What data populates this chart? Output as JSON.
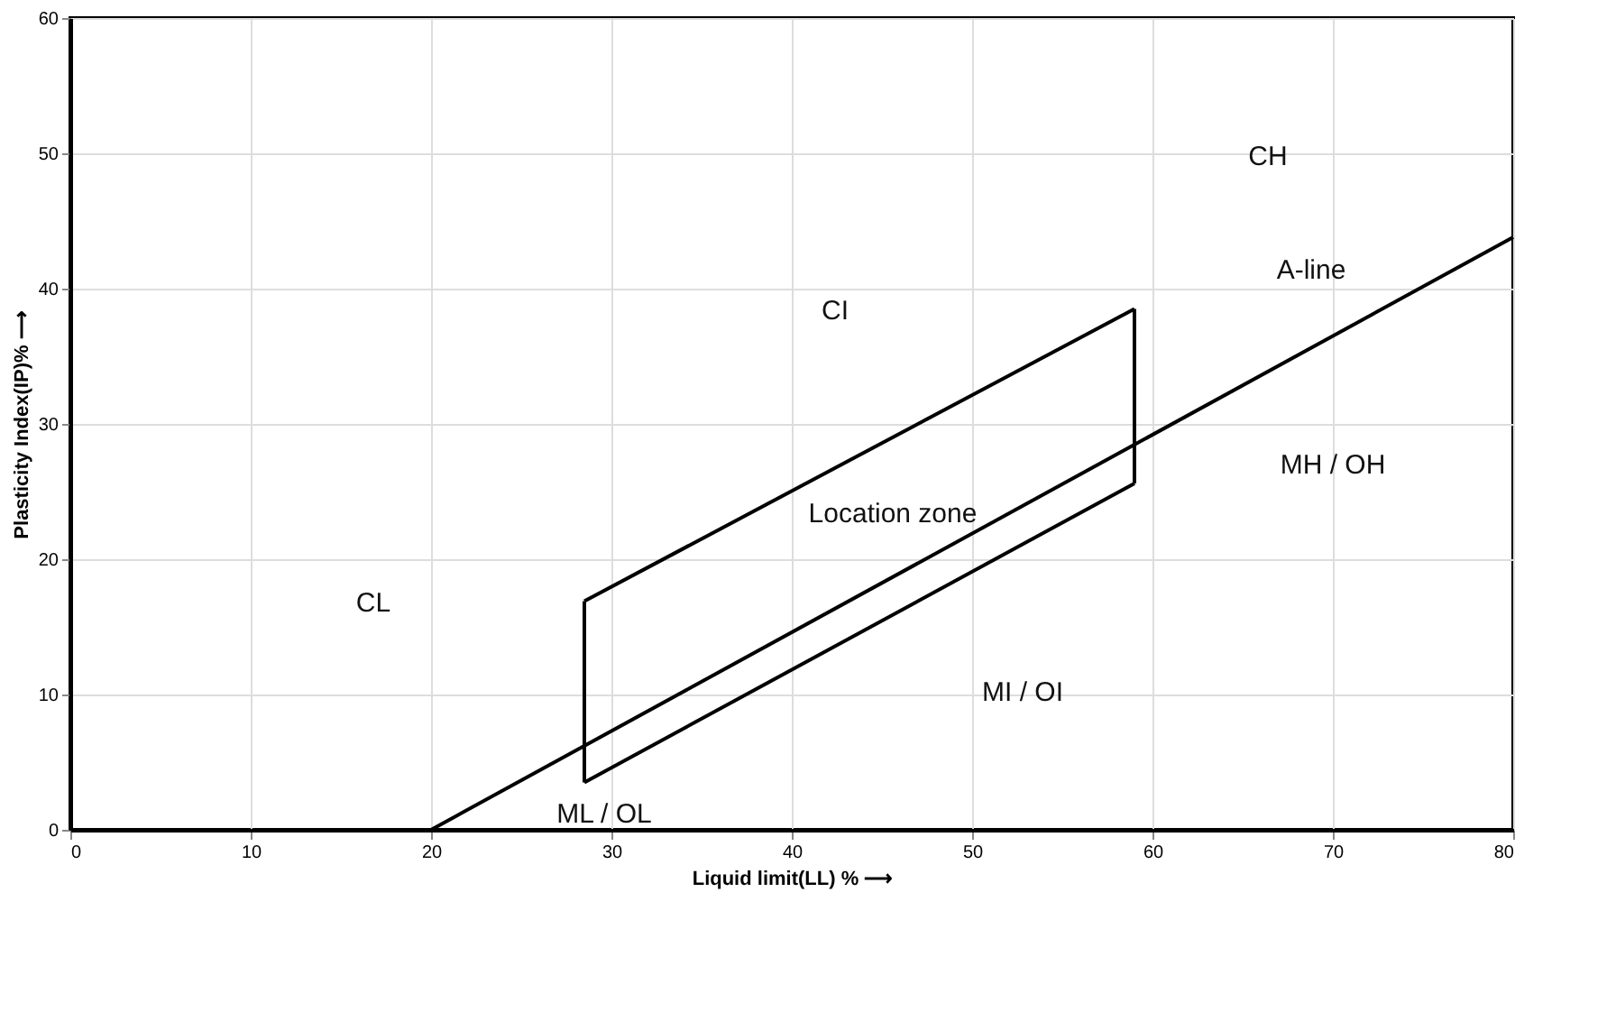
{
  "chart_data": {
    "type": "line",
    "xlabel": "Liquid limit(LL) %  ⟶",
    "ylabel": "Plasticity Index(IP)% ⟶",
    "xlim": [
      0,
      80
    ],
    "ylim": [
      0,
      60
    ],
    "xticks": [
      0,
      10,
      20,
      30,
      40,
      50,
      60,
      70,
      80
    ],
    "yticks": [
      0,
      10,
      20,
      30,
      40,
      50,
      60
    ],
    "grid": true,
    "line_style": "solid",
    "marker": "none",
    "series": [
      {
        "color": "#000000",
        "x": [
          20,
          80
        ],
        "values": [
          0,
          43.8
        ]
      },
      {
        "color": "#000000",
        "x": [
          28.5,
          59
        ],
        "values": [
          16.9,
          38.5
        ]
      },
      {
        "color": "#000000",
        "x": [
          28.5,
          59
        ],
        "values": [
          3.5,
          25.6
        ]
      },
      {
        "color": "#000000",
        "x": [
          28.5,
          28.5
        ],
        "values": [
          3.5,
          16.9
        ]
      },
      {
        "color": "#000000",
        "x": [
          59,
          59
        ],
        "values": [
          25.6,
          38.5
        ]
      }
    ],
    "annotations": [
      "CL",
      "CI",
      "CH",
      "MH / OH",
      "MI / OI",
      "ML / OL",
      "Location zone",
      "A-line"
    ]
  }
}
